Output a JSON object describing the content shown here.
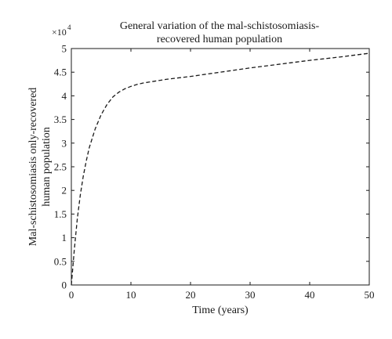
{
  "chart_data": {
    "type": "line",
    "title_line1": "General variation of the mal-schistosomiasis-",
    "title_line2": "recovered human population",
    "xlabel": "Time (years)",
    "ylabel_line1": "Mal-schistosomiasis only-recovered",
    "ylabel_line2": "human population",
    "y_multiplier_base": "×10",
    "y_multiplier_exp": "4",
    "xlim": [
      0,
      50
    ],
    "ylim": [
      0,
      5
    ],
    "y_scale": 10000,
    "xticks": [
      0,
      10,
      20,
      30,
      40,
      50
    ],
    "yticks": [
      0,
      0.5,
      1,
      1.5,
      2,
      2.5,
      3,
      3.5,
      4,
      4.5,
      5
    ],
    "ytick_labels": [
      "0",
      "0.5",
      "1",
      "1.5",
      "2",
      "2.5",
      "3",
      "3.5",
      "4",
      "4.5",
      "5"
    ],
    "grid": false,
    "line_style": "dashed",
    "line_color": "#1a1a1a",
    "series": [
      {
        "x": [
          0,
          0.5,
          1,
          1.5,
          2,
          2.5,
          3,
          4,
          5,
          6,
          7,
          8,
          9,
          10,
          11,
          12,
          13,
          14,
          15,
          16,
          18,
          20,
          25,
          30,
          35,
          40,
          45,
          50
        ],
        "y": [
          0,
          0.75,
          1.4,
          1.9,
          2.3,
          2.62,
          2.9,
          3.3,
          3.6,
          3.82,
          3.98,
          4.08,
          4.15,
          4.2,
          4.24,
          4.27,
          4.29,
          4.31,
          4.33,
          4.35,
          4.38,
          4.41,
          4.5,
          4.59,
          4.67,
          4.75,
          4.82,
          4.9
        ]
      }
    ]
  }
}
